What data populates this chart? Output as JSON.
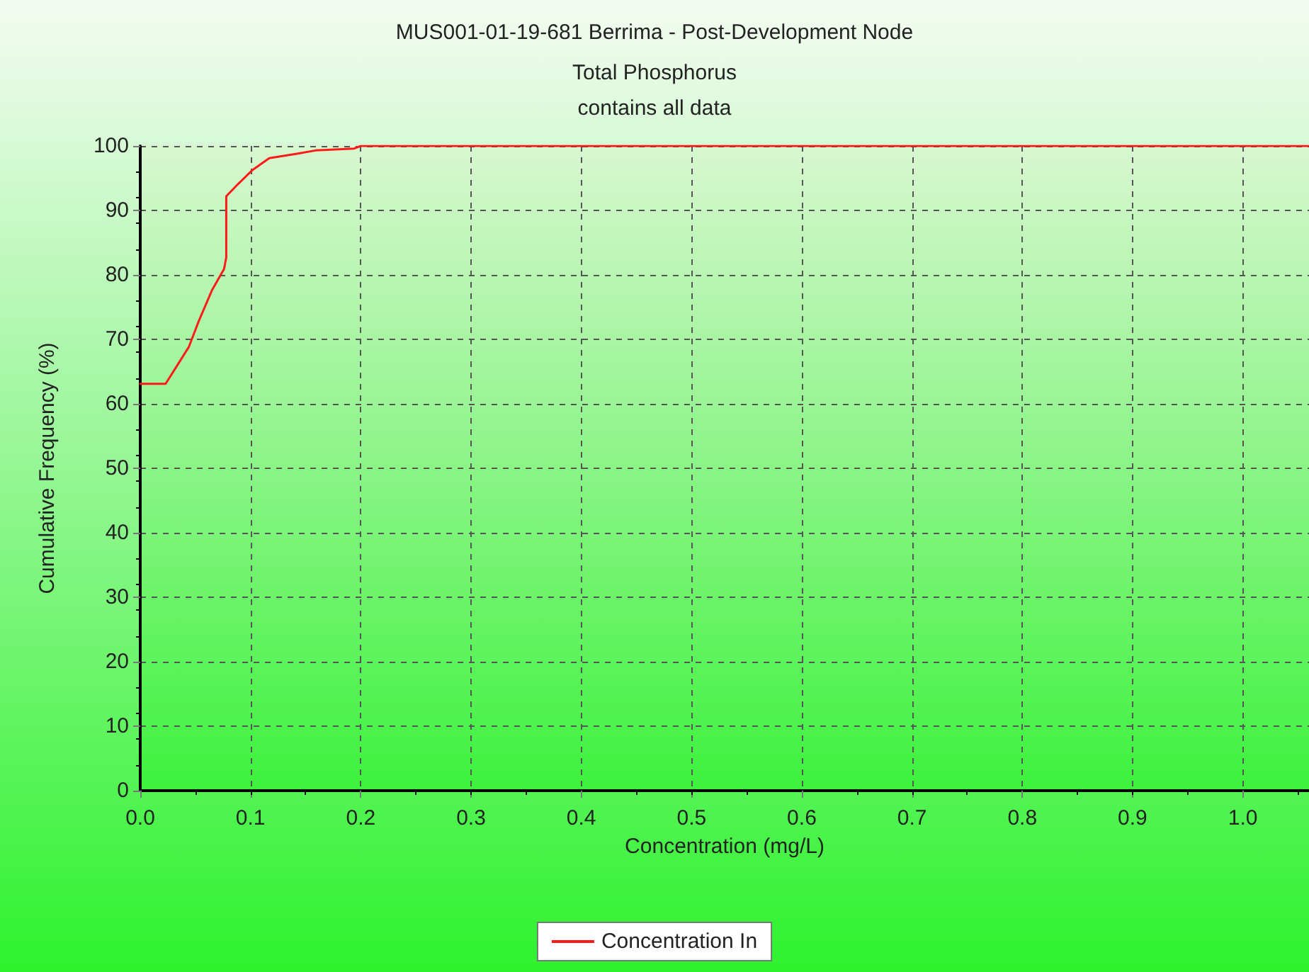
{
  "chart_data": {
    "type": "line",
    "title": "MUS001-01-19-681 Berrima - Post-Development Node",
    "subtitle": "Total Phosphorus\ncontains all data",
    "xlabel": "Concentration (mg/L)",
    "ylabel": "Cumulative Frequency (%)",
    "x": [
      0,
      0.023,
      0.044,
      0.053,
      0.065,
      0.076,
      0.078,
      0.078,
      0.087,
      0.102,
      0.117,
      0.142,
      0.159,
      0.194,
      0.2,
      1.06
    ],
    "series": [
      {
        "name": "Concentration In",
        "color": "#ff1a1a",
        "values": [
          63.1,
          63.1,
          68.8,
          72.8,
          77.6,
          80.9,
          82.7,
          92.2,
          93.8,
          96.3,
          98.1,
          98.8,
          99.3,
          99.6,
          100,
          100
        ]
      }
    ],
    "xlim": [
      0,
      1.06
    ],
    "xticks": [
      {
        "value": 0,
        "label": "0.0"
      },
      0.1,
      0.2,
      0.3,
      0.4,
      0.5,
      0.6,
      0.7,
      0.8,
      0.9,
      {
        "value": 1,
        "label": "1.0"
      }
    ],
    "ylim": [
      0,
      100
    ],
    "yticks": [
      0,
      10,
      20,
      30,
      40,
      50,
      60,
      70,
      80,
      90,
      100
    ],
    "grid": true,
    "legend": "bottom",
    "marker": "none",
    "line_style": "solid"
  }
}
